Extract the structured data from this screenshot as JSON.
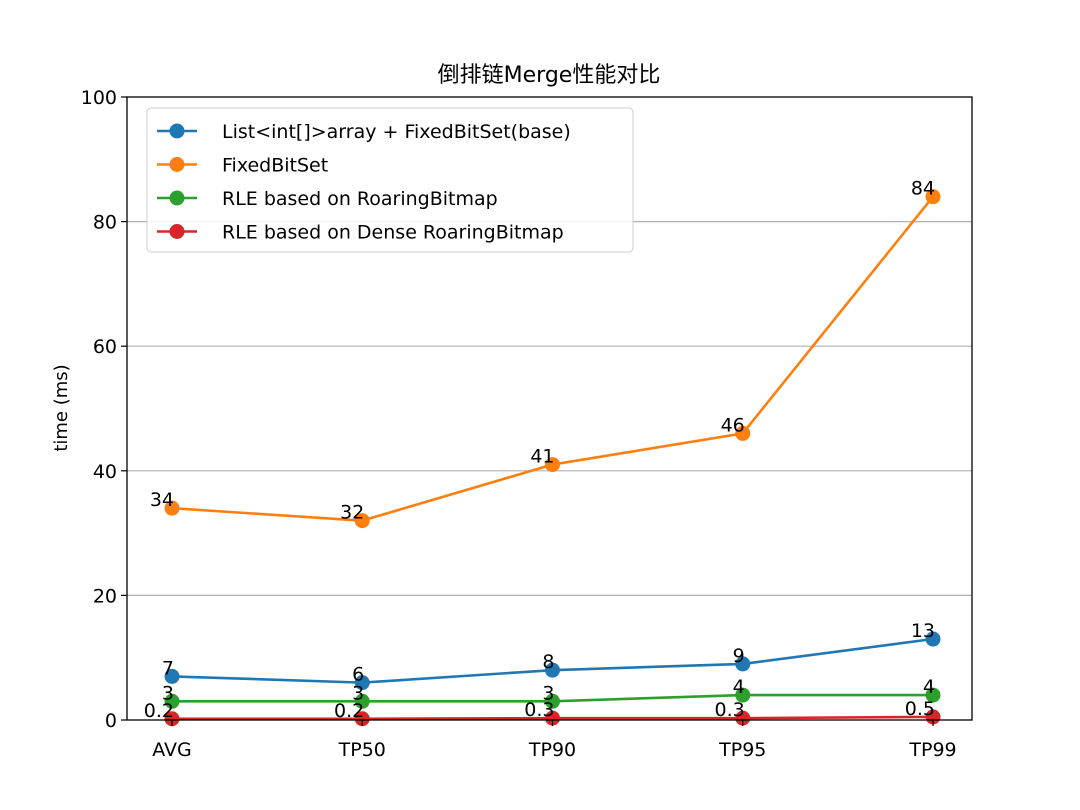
{
  "chart_data": {
    "type": "line",
    "title": "倒排链Merge性能对比",
    "xlabel": "",
    "ylabel": "time (ms)",
    "categories": [
      "AVG",
      "TP50",
      "TP90",
      "TP95",
      "TP99"
    ],
    "ylim": [
      0,
      100
    ],
    "yticks": [
      0,
      20,
      40,
      60,
      80,
      100
    ],
    "grid": "horizontal",
    "legend_position": "top-left",
    "series": [
      {
        "name": "List<int[]>array + FixedBitSet(base)",
        "color": "#1f77b4",
        "values": [
          7,
          6,
          8,
          9,
          13
        ],
        "labels": [
          "7",
          "6",
          "8",
          "9",
          "13"
        ]
      },
      {
        "name": "FixedBitSet",
        "color": "#ff7f0e",
        "values": [
          34,
          32,
          41,
          46,
          84
        ],
        "labels": [
          "34",
          "32",
          "41",
          "46",
          "84"
        ]
      },
      {
        "name": "RLE based on RoaringBitmap",
        "color": "#2ca02c",
        "values": [
          3,
          3,
          3,
          4,
          4
        ],
        "labels": [
          "3",
          "3",
          "3",
          "4",
          "4"
        ]
      },
      {
        "name": "RLE based on Dense RoaringBitmap",
        "color": "#d62728",
        "values": [
          0.2,
          0.2,
          0.3,
          0.3,
          0.5
        ],
        "labels": [
          "0.2",
          "0.2",
          "0.3",
          "0.3",
          "0.5"
        ]
      }
    ]
  }
}
